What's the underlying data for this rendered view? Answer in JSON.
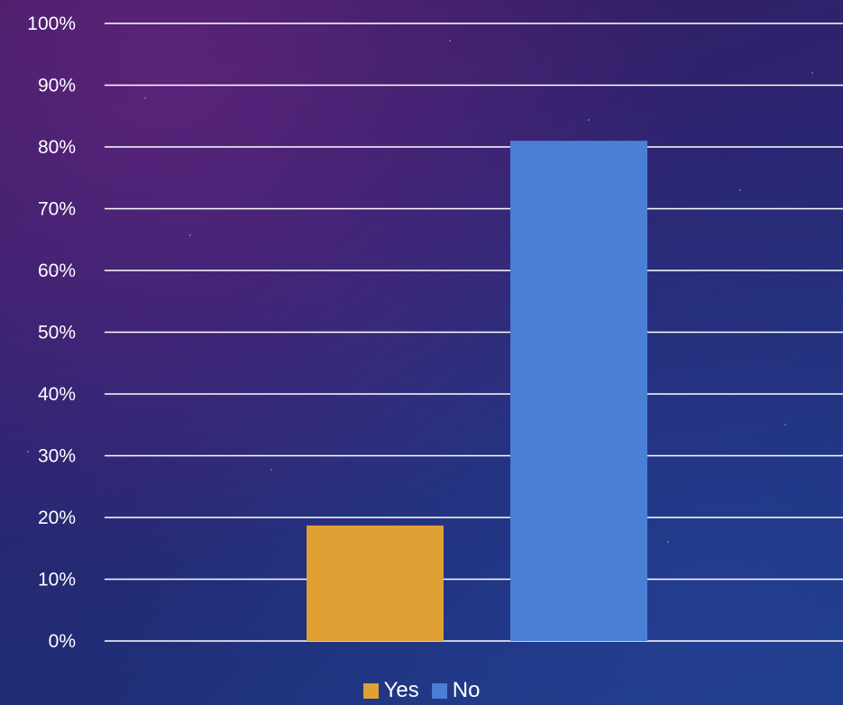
{
  "chart_data": {
    "type": "bar",
    "categories": [
      "Yes",
      "No"
    ],
    "values": [
      18.7,
      81
    ],
    "colors": [
      "#e0a033",
      "#4a7fd6"
    ],
    "ylim": [
      0,
      100
    ],
    "yticks": [
      "0%",
      "10%",
      "20%",
      "30%",
      "40%",
      "50%",
      "60%",
      "70%",
      "80%",
      "90%",
      "100%"
    ],
    "grid": true,
    "legend_position": "bottom",
    "title": "",
    "xlabel": "",
    "ylabel": ""
  },
  "legend": {
    "items": [
      {
        "label": "Yes",
        "color": "#e0a033"
      },
      {
        "label": "No",
        "color": "#4a7fd6"
      }
    ]
  },
  "colors": {
    "gridline": "#ffffff",
    "text": "#ffffff"
  }
}
